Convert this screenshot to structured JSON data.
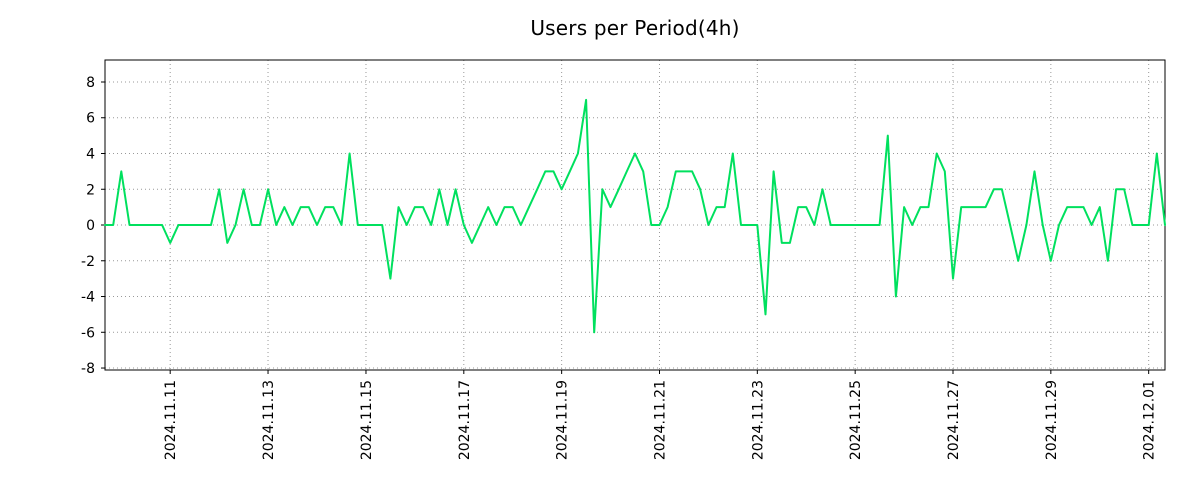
{
  "page": {
    "background": "#ffffff"
  },
  "chart_data": {
    "type": "line",
    "title": "Users per Period(4h)",
    "xlabel": "",
    "ylabel": "",
    "grid": true,
    "grid_color": "#999999",
    "legend": false,
    "ylim": [
      -8.11,
      9.23
    ],
    "y_ticks": [
      {
        "label": "-8",
        "value": -8
      },
      {
        "label": "-6",
        "value": -6
      },
      {
        "label": "-4",
        "value": -4
      },
      {
        "label": "-2",
        "value": -2
      },
      {
        "label": "0",
        "value": 0
      },
      {
        "label": "2",
        "value": 2
      },
      {
        "label": "4",
        "value": 4
      },
      {
        "label": "6",
        "value": 6
      },
      {
        "label": "8",
        "value": 8
      }
    ],
    "x_ticks": [
      {
        "label": "2024.11.11",
        "pos": 0.0615
      },
      {
        "label": "2024.11.13",
        "pos": 0.1538
      },
      {
        "label": "2024.11.15",
        "pos": 0.2462
      },
      {
        "label": "2024.11.17",
        "pos": 0.3385
      },
      {
        "label": "2024.11.19",
        "pos": 0.4308
      },
      {
        "label": "2024.11.21",
        "pos": 0.5231
      },
      {
        "label": "2024.11.23",
        "pos": 0.6154
      },
      {
        "label": "2024.11.25",
        "pos": 0.7077
      },
      {
        "label": "2024.11.27",
        "pos": 0.8
      },
      {
        "label": "2024.11.29",
        "pos": 0.8923
      },
      {
        "label": "2024.12.01",
        "pos": 0.9846
      }
    ],
    "period_hours": 4,
    "series": [
      {
        "name": "users",
        "color": "#00e05e",
        "values": [
          0,
          0,
          3,
          0,
          0,
          0,
          0,
          0,
          -1,
          0,
          0,
          0,
          0,
          0,
          2,
          -1,
          0,
          2,
          0,
          0,
          2,
          0,
          1,
          0,
          1,
          1,
          0,
          1,
          1,
          0,
          4,
          0,
          0,
          0,
          0,
          -3,
          1,
          0,
          1,
          1,
          0,
          2,
          0,
          2,
          0,
          -1,
          0,
          1,
          0,
          1,
          1,
          0,
          1,
          2,
          3,
          3,
          2,
          3,
          4,
          7,
          -6,
          2,
          1,
          2,
          3,
          4,
          3,
          0,
          0,
          1,
          3,
          3,
          3,
          2,
          0,
          1,
          1,
          4,
          0,
          0,
          0,
          -5,
          3,
          -1,
          -1,
          1,
          1,
          0,
          2,
          0,
          0,
          0,
          0,
          0,
          0,
          0,
          5,
          -4,
          1,
          0,
          1,
          1,
          4,
          3,
          -3,
          1,
          1,
          1,
          1,
          2,
          2,
          0,
          -2,
          0,
          3,
          0,
          -2,
          0,
          1,
          1,
          1,
          0,
          1,
          -2,
          2,
          2,
          0,
          0,
          0,
          4,
          0
        ]
      }
    ]
  }
}
